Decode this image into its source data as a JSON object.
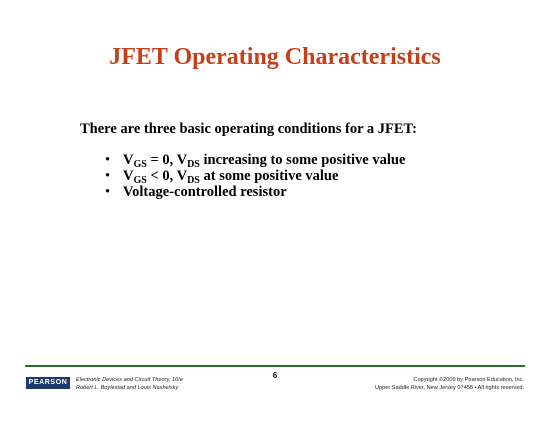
{
  "slide": {
    "title": "JFET Operating Characteristics",
    "intro": "There are three basic operating conditions for a JFET:",
    "bullet_marker": "•",
    "bullets": [
      {
        "v1": "V",
        "s1": "GS",
        "mid": " = 0, V",
        "s2": "DS",
        "rest": " increasing to some positive value"
      },
      {
        "v1": "V",
        "s1": "GS",
        "mid": " < 0, V",
        "s2": "DS",
        "rest": " at some positive value"
      },
      {
        "text": "Voltage-controlled resistor"
      }
    ]
  },
  "footer": {
    "logo_text": "PEARSON",
    "book_title": "Electronic Devices and Circuit Theory, 10/e",
    "authors": "Robert L. Boylestad and Louis Nashelsky",
    "page_number": "6",
    "copyright": "Copyright ©2009 by Pearson Education, Inc.",
    "address": "Upper Saddle River, New Jersey 07458 • All rights reserved."
  },
  "colors": {
    "title": "#c5401a",
    "footer_rule": "#2e6b2e",
    "logo_bg": "#1d3a6e"
  }
}
